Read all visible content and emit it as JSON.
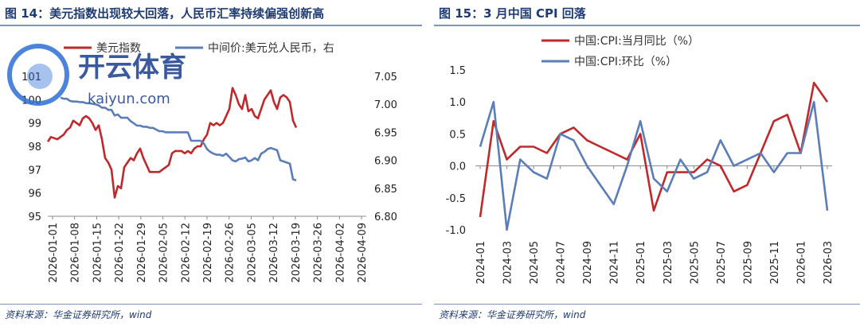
{
  "chart14": {
    "figure_title": "图 14：美元指数出现较大回落，人民币汇率持续偏强创新高",
    "source": "资料来源：华金证券研究所，wind",
    "legend": {
      "series1": "美元指数",
      "series2": "中间价:美元兑人民币，右"
    }
  },
  "chart15": {
    "figure_title": "图 15：3 月中国 CPI 回落",
    "source": "资料来源：华金证券研究所，wind",
    "legend": {
      "series1": "中国:CPI:当月同比（%）",
      "series2": "中国:CPI:环比（%）"
    }
  },
  "watermark": {
    "brand": "开云体育",
    "url": "kaiyun.com"
  },
  "colors": {
    "red": "#c0292b",
    "blue": "#5b7db8",
    "title": "#1f3b74"
  },
  "chart_data": [
    {
      "type": "line",
      "title": "",
      "x_ticks": [
        "2026-01-01",
        "2026-01-08",
        "2026-01-15",
        "2026-01-22",
        "2026-01-29",
        "2026-02-05",
        "2026-02-12",
        "2026-02-19",
        "2026-02-26",
        "2026-03-05",
        "2026-03-12",
        "2026-03-19",
        "2026-03-26",
        "2026-04-02",
        "2026-04-09"
      ],
      "x_range": [
        0,
        100
      ],
      "y_left": {
        "range": [
          95,
          101
        ],
        "ticks": [
          "95",
          "96",
          "97",
          "98",
          "99",
          "100",
          "101"
        ]
      },
      "y_right": {
        "range": [
          6.8,
          7.05
        ],
        "ticks": [
          "6.80",
          "6.85",
          "6.90",
          "6.95",
          "7.00",
          "7.05"
        ]
      },
      "grid": false,
      "legend_position": "top",
      "series": [
        {
          "name": "美元指数",
          "axis": "left",
          "color": "#c0292b",
          "points": [
            [
              0,
              98.2
            ],
            [
              1,
              98.4
            ],
            [
              3,
              98.3
            ],
            [
              5,
              98.5
            ],
            [
              6,
              98.7
            ],
            [
              7,
              98.8
            ],
            [
              8,
              99.1
            ],
            [
              9,
              99.0
            ],
            [
              10,
              98.9
            ],
            [
              11,
              99.2
            ],
            [
              12,
              99.3
            ],
            [
              13,
              99.2
            ],
            [
              14,
              99.0
            ],
            [
              15,
              98.7
            ],
            [
              16,
              98.9
            ],
            [
              17,
              98.3
            ],
            [
              18,
              97.5
            ],
            [
              19,
              97.3
            ],
            [
              20,
              97.0
            ],
            [
              21,
              95.8
            ],
            [
              22,
              96.3
            ],
            [
              23,
              96.2
            ],
            [
              24,
              97.1
            ],
            [
              25,
              97.3
            ],
            [
              26,
              97.5
            ],
            [
              27,
              97.4
            ],
            [
              28,
              97.7
            ],
            [
              29,
              97.9
            ],
            [
              30,
              97.5
            ],
            [
              31,
              97.2
            ],
            [
              32,
              96.9
            ],
            [
              33,
              96.9
            ],
            [
              34,
              96.9
            ],
            [
              35,
              96.9
            ],
            [
              36,
              97.0
            ],
            [
              37,
              97.1
            ],
            [
              38,
              97.2
            ],
            [
              39,
              97.7
            ],
            [
              40,
              97.8
            ],
            [
              41,
              97.8
            ],
            [
              42,
              97.8
            ],
            [
              43,
              97.7
            ],
            [
              44,
              97.8
            ],
            [
              45,
              97.7
            ],
            [
              46,
              97.9
            ],
            [
              47,
              98.0
            ],
            [
              48,
              98.0
            ],
            [
              49,
              98.3
            ],
            [
              50,
              98.5
            ],
            [
              51,
              99.0
            ],
            [
              52,
              98.9
            ],
            [
              53,
              99.0
            ],
            [
              54,
              98.9
            ],
            [
              55,
              99.0
            ],
            [
              56,
              99.3
            ],
            [
              57,
              99.6
            ],
            [
              58,
              100.5
            ],
            [
              59,
              100.2
            ],
            [
              60,
              99.8
            ],
            [
              61,
              99.6
            ],
            [
              62,
              100.2
            ],
            [
              63,
              99.5
            ],
            [
              64,
              99.6
            ],
            [
              65,
              99.3
            ],
            [
              66,
              99.2
            ],
            [
              67,
              99.6
            ],
            [
              68,
              100.0
            ],
            [
              69,
              100.2
            ],
            [
              70,
              100.4
            ],
            [
              71,
              99.9
            ],
            [
              72,
              99.6
            ],
            [
              73,
              100.1
            ],
            [
              74,
              100.2
            ],
            [
              75,
              100.1
            ],
            [
              76,
              99.9
            ],
            [
              77,
              99.1
            ],
            [
              78,
              98.8
            ]
          ]
        },
        {
          "name": "中间价:美元兑人民币，右",
          "axis": "right",
          "color": "#5b7db8",
          "points": [
            [
              4,
              7.012
            ],
            [
              5,
              7.01
            ],
            [
              6,
              7.01
            ],
            [
              7,
              7.006
            ],
            [
              8,
              7.005
            ],
            [
              9,
              7.005
            ],
            [
              10,
              7.004
            ],
            [
              11,
              7.004
            ],
            [
              12,
              7.002
            ],
            [
              13,
              7.002
            ],
            [
              14,
              7.001
            ],
            [
              15,
              7.0
            ],
            [
              16,
              6.998
            ],
            [
              17,
              6.994
            ],
            [
              18,
              6.994
            ],
            [
              19,
              6.99
            ],
            [
              20,
              6.99
            ],
            [
              21,
              6.98
            ],
            [
              22,
              6.982
            ],
            [
              23,
              6.976
            ],
            [
              24,
              6.976
            ],
            [
              25,
              6.976
            ],
            [
              26,
              6.97
            ],
            [
              27,
              6.966
            ],
            [
              28,
              6.962
            ],
            [
              29,
              6.962
            ],
            [
              30,
              6.96
            ],
            [
              31,
              6.96
            ],
            [
              32,
              6.958
            ],
            [
              33,
              6.958
            ],
            [
              34,
              6.955
            ],
            [
              35,
              6.952
            ],
            [
              36,
              6.952
            ],
            [
              37,
              6.95
            ],
            [
              38,
              6.95
            ],
            [
              39,
              6.95
            ],
            [
              40,
              6.95
            ],
            [
              41,
              6.95
            ],
            [
              42,
              6.95
            ],
            [
              43,
              6.95
            ],
            [
              44,
              6.95
            ],
            [
              45,
              6.935
            ],
            [
              46,
              6.935
            ],
            [
              47,
              6.935
            ],
            [
              48,
              6.935
            ],
            [
              49,
              6.93
            ],
            [
              50,
              6.92
            ],
            [
              51,
              6.915
            ],
            [
              52,
              6.912
            ],
            [
              53,
              6.91
            ],
            [
              54,
              6.91
            ],
            [
              55,
              6.908
            ],
            [
              56,
              6.912
            ],
            [
              57,
              6.906
            ],
            [
              58,
              6.9
            ],
            [
              59,
              6.898
            ],
            [
              60,
              6.902
            ],
            [
              61,
              6.903
            ],
            [
              62,
              6.905
            ],
            [
              63,
              6.898
            ],
            [
              64,
              6.9
            ],
            [
              65,
              6.904
            ],
            [
              66,
              6.9
            ],
            [
              67,
              6.912
            ],
            [
              68,
              6.915
            ],
            [
              69,
              6.92
            ],
            [
              70,
              6.922
            ],
            [
              71,
              6.92
            ],
            [
              72,
              6.918
            ],
            [
              73,
              6.9
            ],
            [
              74,
              6.898
            ],
            [
              75,
              6.896
            ],
            [
              76,
              6.894
            ],
            [
              77,
              6.866
            ],
            [
              78,
              6.864
            ]
          ]
        }
      ]
    },
    {
      "type": "line",
      "title": "",
      "categories": [
        "2024-01",
        "2024-02",
        "2024-03",
        "2024-04",
        "2024-05",
        "2024-06",
        "2024-07",
        "2024-08",
        "2024-09",
        "2024-10",
        "2024-11",
        "2024-12",
        "2025-01",
        "2025-02",
        "2025-03",
        "2025-04",
        "2025-05",
        "2025-06",
        "2025-07",
        "2025-08",
        "2025-09",
        "2025-10",
        "2025-11",
        "2025-12",
        "2026-01",
        "2026-02",
        "2026-03"
      ],
      "x_tick_labels": [
        "2024-01",
        "2024-03",
        "2024-05",
        "2024-07",
        "2024-09",
        "2024-11",
        "2025-01",
        "2025-03",
        "2025-05",
        "2025-07",
        "2025-09",
        "2025-11",
        "2026-01",
        "2026-03"
      ],
      "y_range": [
        -1.0,
        1.5
      ],
      "y_ticks": [
        "-1.0",
        "-0.5",
        "0.0",
        "0.5",
        "1.0",
        "1.5"
      ],
      "grid": false,
      "legend_position": "top-center",
      "series": [
        {
          "name": "中国:CPI:当月同比（%）",
          "color": "#c0292b",
          "values": [
            -0.8,
            0.7,
            0.1,
            0.3,
            0.3,
            0.2,
            0.5,
            0.6,
            0.4,
            0.3,
            0.2,
            0.1,
            0.5,
            -0.7,
            -0.1,
            -0.1,
            -0.1,
            0.1,
            0.0,
            -0.4,
            -0.3,
            0.2,
            0.7,
            0.8,
            0.2,
            1.3,
            1.0
          ]
        },
        {
          "name": "中国:CPI:环比（%）",
          "color": "#5b7db8",
          "values": [
            0.3,
            1.0,
            -1.0,
            0.1,
            -0.1,
            -0.2,
            0.5,
            0.4,
            0.0,
            -0.3,
            -0.6,
            0.0,
            0.7,
            -0.2,
            -0.4,
            0.1,
            -0.2,
            -0.1,
            0.4,
            0.0,
            0.1,
            0.2,
            -0.1,
            0.2,
            0.2,
            1.0,
            -0.7
          ]
        }
      ]
    }
  ]
}
